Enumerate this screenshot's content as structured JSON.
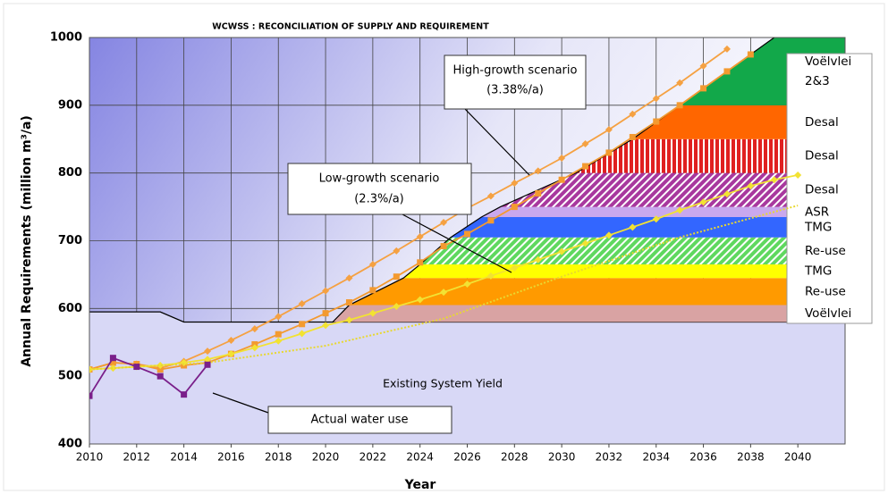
{
  "chart_data": {
    "type": "line",
    "title": "WCWSS : RECONCILIATION OF SUPPLY AND REQUIREMENT",
    "x_label": "Year",
    "y_label": "Annual Requirements (million m³/a)",
    "xlim": [
      2010,
      2042
    ],
    "ylim": [
      400,
      1000
    ],
    "xticks": [
      2010,
      2012,
      2014,
      2016,
      2018,
      2020,
      2022,
      2024,
      2026,
      2028,
      2030,
      2032,
      2034,
      2036,
      2038,
      2040
    ],
    "yticks": [
      400,
      500,
      600,
      700,
      800,
      900,
      1000
    ],
    "grid": true,
    "existing_yield": {
      "name": "Existing System Yield",
      "color": "#d8d8f6",
      "x": [
        2010,
        2013,
        2014,
        2042
      ],
      "values": [
        595,
        595,
        580,
        580
      ]
    },
    "supply_schemes": [
      {
        "name": "Voëlvlei",
        "color": "#d9a3a3",
        "start": 2020.3,
        "thickness": 25
      },
      {
        "name": "Re-use",
        "color": "#ff9a00",
        "start": 2021.0,
        "thickness": 40
      },
      {
        "name": "TMG",
        "color": "#ffff00",
        "start": 2023.3,
        "thickness": 20
      },
      {
        "name": "Re-use",
        "color": "#5fd85f",
        "pattern": "hatch",
        "start": 2024.0,
        "thickness": 40
      },
      {
        "name": "TMG",
        "color": "#3366ff",
        "start": 2025.3,
        "thickness": 30
      },
      {
        "name": "ASR",
        "color": "#c9a8ee",
        "start": 2026.6,
        "thickness": 15
      },
      {
        "name": "Desal",
        "color": "#a8389e",
        "pattern": "hatch",
        "start": 2027.4,
        "thickness": 50
      },
      {
        "name": "Desal",
        "color": "#e02020",
        "pattern": "stripes",
        "start": 2030.6,
        "thickness": 50
      },
      {
        "name": "Desal",
        "color": "#ff6600",
        "start": 2033.0,
        "thickness": 50
      },
      {
        "name": "Voëlvlei 2&3",
        "color": "#12a84a",
        "start": 2035.0,
        "thickness": 100
      }
    ],
    "series": [
      {
        "color": "#f5a142",
        "marker": "diamond",
        "x": [
          2010,
          2011,
          2012,
          2013,
          2014,
          2015,
          2016,
          2017,
          2018,
          2019,
          2020,
          2021,
          2022,
          2023,
          2024,
          2025,
          2026,
          2027,
          2028,
          2029,
          2030,
          2031,
          2032,
          2033,
          2034,
          2035,
          2036,
          2037
        ],
        "values": [
          510,
          520,
          518,
          512,
          522,
          537,
          553,
          570,
          588,
          607,
          626,
          645,
          665,
          685,
          706,
          727,
          748,
          766,
          785,
          803,
          822,
          843,
          864,
          887,
          910,
          933,
          958,
          983
        ]
      },
      {
        "color": "#f39a30",
        "marker": "square",
        "x": [
          2010,
          2011,
          2012,
          2013,
          2014,
          2015,
          2016,
          2017,
          2018,
          2019,
          2020,
          2021,
          2022,
          2023,
          2024,
          2025,
          2026,
          2027,
          2028,
          2029,
          2030,
          2031,
          2032,
          2033,
          2034,
          2035,
          2036,
          2037,
          2038
        ],
        "values": [
          510,
          520,
          518,
          510,
          516,
          520,
          533,
          547,
          562,
          577,
          593,
          609,
          627,
          647,
          668,
          692,
          710,
          730,
          750,
          770,
          790,
          810,
          830,
          853,
          876,
          900,
          925,
          950,
          975
        ]
      },
      {
        "color": "#f2e233",
        "marker": "diamond",
        "x": [
          2010,
          2011,
          2012,
          2013,
          2014,
          2015,
          2016,
          2017,
          2018,
          2019,
          2020,
          2021,
          2022,
          2023,
          2024,
          2025,
          2026,
          2027,
          2028,
          2029,
          2030,
          2031,
          2032,
          2033,
          2034,
          2035,
          2036,
          2037,
          2038,
          2039,
          2040
        ],
        "values": [
          510,
          512,
          514,
          516,
          520,
          525,
          533,
          542,
          552,
          563,
          575,
          583,
          593,
          603,
          613,
          624,
          636,
          648,
          660,
          672,
          684,
          696,
          708,
          720,
          732,
          745,
          757,
          769,
          781,
          790,
          797
        ]
      },
      {
        "color": "#e8d830",
        "marker": "none",
        "dash": "dotted",
        "x": [
          2010,
          2015,
          2020,
          2025,
          2030,
          2035,
          2040
        ],
        "values": [
          510,
          520,
          545,
          585,
          647,
          705,
          752
        ]
      },
      {
        "color": "#7a1f8a",
        "marker": "square",
        "x": [
          2010,
          2011,
          2012,
          2013,
          2014,
          2015
        ],
        "values": [
          471,
          527,
          514,
          500,
          473,
          517
        ]
      }
    ],
    "annotations": [
      {
        "lines": [
          "High-growth scenario",
          "(3.38%/a)"
        ]
      },
      {
        "lines": [
          "Low-growth scenario",
          "(2.3%/a)"
        ]
      },
      {
        "lines": [
          "Actual water use"
        ]
      }
    ]
  }
}
